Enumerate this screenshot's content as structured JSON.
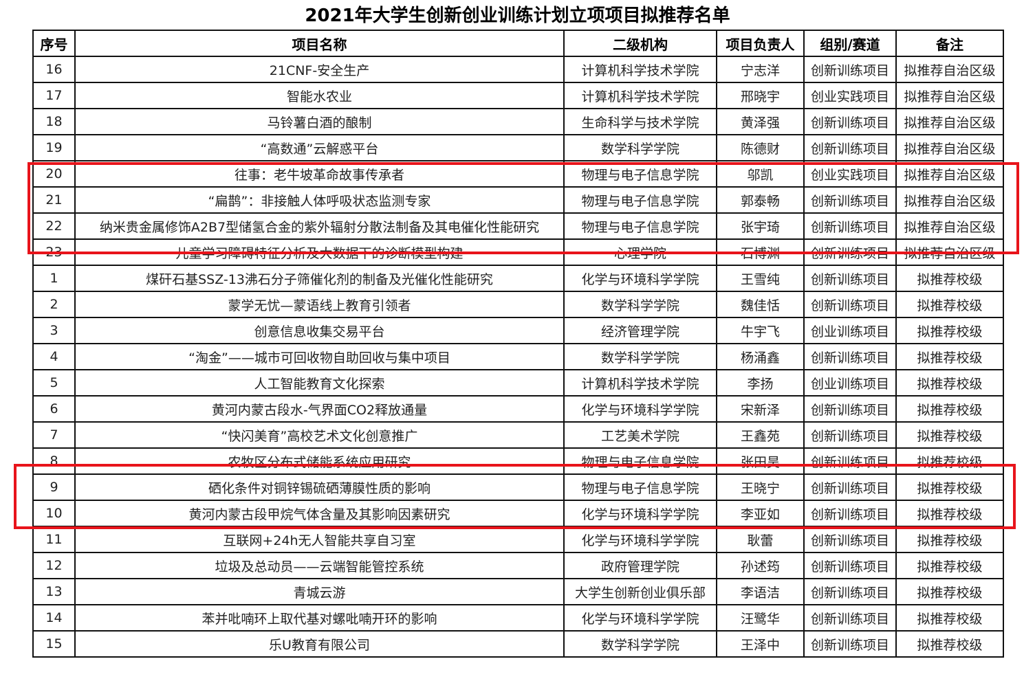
{
  "title": "2021年大学生创新创业训练计划立项项目拟推荐名单",
  "headers": [
    "序号",
    "项目名称",
    "二级机构",
    "项目负责人",
    "组别/赛道",
    "备注"
  ],
  "highlight_color": "#e8141b",
  "rows": [
    [
      "16",
      "21CNF-安全生产",
      "计算机科学技术学院",
      "宁志洋",
      "创新训练项目",
      "拟推荐自治区级"
    ],
    [
      "17",
      "智能水农业",
      "计算机科学技术学院",
      "邢晓宇",
      "创业实践项目",
      "拟推荐自治区级"
    ],
    [
      "18",
      "马铃薯白酒的酿制",
      "生命科学与技术学院",
      "黄泽强",
      "创新训练项目",
      "拟推荐自治区级"
    ],
    [
      "19",
      "“高数通”云解惑平台",
      "数学科学学院",
      "陈德财",
      "创新训练项目",
      "拟推荐自治区级"
    ],
    [
      "20",
      "往事：老牛坡革命故事传承者",
      "物理与电子信息学院",
      "邬凯",
      "创业实践项目",
      "拟推荐自治区级"
    ],
    [
      "21",
      "“扁鹊”：非接触人体呼吸状态监测专家",
      "物理与电子信息学院",
      "郭泰畅",
      "创新训练项目",
      "拟推荐自治区级"
    ],
    [
      "22",
      "纳米贵金属修饰A2B7型储氢合金的紫外辐射分散法制备及其电催化性能研究",
      "物理与电子信息学院",
      "张宇琦",
      "创新训练项目",
      "拟推荐自治区级"
    ],
    [
      "23",
      "儿童学习障碍特征分析及大数据下的诊断模型构建",
      "心理学院",
      "石博渊",
      "创新训练项目",
      "拟推荐自治区级"
    ],
    [
      "1",
      "煤矸石基SSZ-13沸石分子筛催化剂的制备及光催化性能研究",
      "化学与环境科学学院",
      "王雪纯",
      "创新训练项目",
      "拟推荐校级"
    ],
    [
      "2",
      "蒙学无忧—蒙语线上教育引领者",
      "数学科学学院",
      "魏佳恬",
      "创新训练项目",
      "拟推荐校级"
    ],
    [
      "3",
      "创意信息收集交易平台",
      "经济管理学院",
      "牛宇飞",
      "创业训练项目",
      "拟推荐校级"
    ],
    [
      "4",
      "“淘金”——城市可回收物自助回收与集中项目",
      "数学科学学院",
      "杨涌鑫",
      "创新训练项目",
      "拟推荐校级"
    ],
    [
      "5",
      "人工智能教育文化探索",
      "计算机科学技术学院",
      "李扬",
      "创业训练项目",
      "拟推荐校级"
    ],
    [
      "6",
      "黄河内蒙古段水-气界面CO2释放通量",
      "化学与环境科学学院",
      "宋新泽",
      "创新训练项目",
      "拟推荐校级"
    ],
    [
      "7",
      "“快闪美育”高校艺术文化创意推广",
      "工艺美术学院",
      "王鑫苑",
      "创新训练项目",
      "拟推荐校级"
    ],
    [
      "8",
      "农牧区分布式储能系统应用研究",
      "物理与电子信息学院",
      "张田昊",
      "创新训练项目",
      "拟推荐校级"
    ],
    [
      "9",
      "硒化条件对铜锌锡硫硒薄膜性质的影响",
      "物理与电子信息学院",
      "王晓宁",
      "创新训练项目",
      "拟推荐校级"
    ],
    [
      "10",
      "黄河内蒙古段甲烷气体含量及其影响因素研究",
      "化学与环境科学学院",
      "李亚如",
      "创新训练项目",
      "拟推荐校级"
    ],
    [
      "11",
      "互联网+24h无人智能共享自习室",
      "化学与环境科学学院",
      "耿蕾",
      "创新训练项目",
      "拟推荐校级"
    ],
    [
      "12",
      "垃圾及总动员——云端智能管控系统",
      "政府管理学院",
      "孙述筠",
      "创新训练项目",
      "拟推荐校级"
    ],
    [
      "13",
      "青城云游",
      "大学生创新创业俱乐部",
      "李语洁",
      "创新训练项目",
      "拟推荐校级"
    ],
    [
      "14",
      "苯并吡喃环上取代基对螺吡喃开环的影响",
      "化学与环境科学学院",
      "汪鹭华",
      "创新训练项目",
      "拟推荐校级"
    ],
    [
      "15",
      "乐U教育有限公司",
      "数学科学学院",
      "王泽中",
      "创新训练项目",
      "拟推荐校级"
    ]
  ]
}
